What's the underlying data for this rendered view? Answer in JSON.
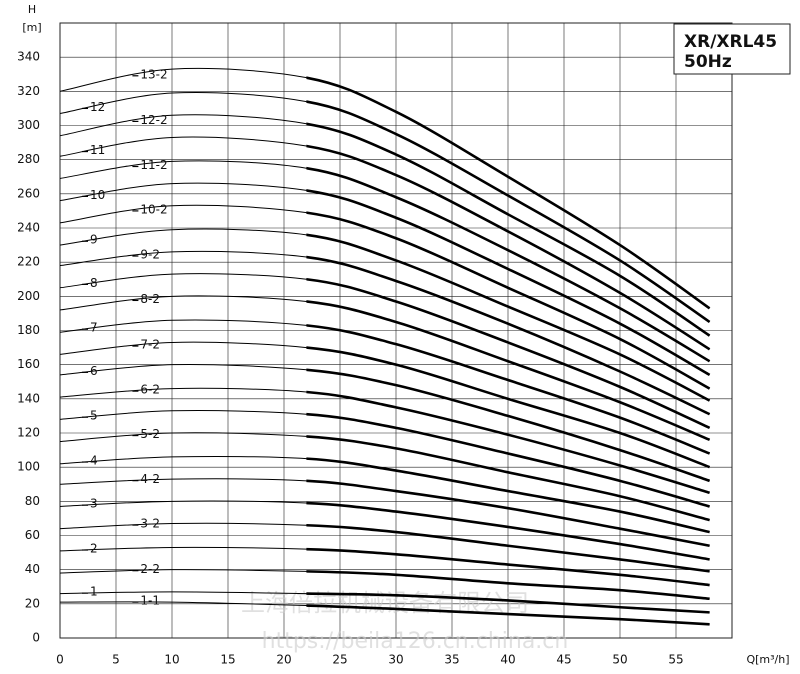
{
  "chart_data": {
    "type": "line",
    "title": "XR/XRL45",
    "subtitle": "50Hz",
    "y_label": "H",
    "y_unit": "[m]",
    "x_label": "Q[m³/h]",
    "watermark": [
      "上海倍拉机械设备有限公司",
      "https://beila126.cn.china.cn"
    ],
    "x": [
      0,
      10,
      22,
      30,
      40,
      50,
      58
    ],
    "xlim": [
      0,
      60
    ],
    "xticks": [
      0,
      5,
      10,
      15,
      20,
      25,
      30,
      35,
      40,
      45,
      50,
      55
    ],
    "ylim": [
      0,
      360
    ],
    "yticks": [
      0,
      20,
      40,
      60,
      80,
      100,
      120,
      140,
      160,
      180,
      200,
      220,
      240,
      260,
      280,
      300,
      320,
      340
    ],
    "grid": true,
    "color": "#000000",
    "series": [
      {
        "name": "1-1",
        "values": [
          21,
          21,
          19,
          17,
          14,
          11,
          8
        ]
      },
      {
        "name": "1",
        "values": [
          26,
          27,
          26,
          25,
          22,
          18,
          15
        ]
      },
      {
        "name": "2-2",
        "values": [
          38,
          40,
          39,
          37,
          32,
          28,
          23
        ]
      },
      {
        "name": "2",
        "values": [
          51,
          53,
          52,
          49,
          43,
          37,
          31
        ]
      },
      {
        "name": "3-2",
        "values": [
          64,
          67,
          66,
          62,
          54,
          46,
          39
        ]
      },
      {
        "name": "3",
        "values": [
          77,
          80,
          79,
          74,
          65,
          55,
          46
        ]
      },
      {
        "name": "4-2",
        "values": [
          90,
          93,
          92,
          86,
          76,
          64,
          54
        ]
      },
      {
        "name": "4",
        "values": [
          102,
          106,
          105,
          98,
          86,
          74,
          62
        ]
      },
      {
        "name": "5-2",
        "values": [
          115,
          120,
          118,
          111,
          97,
          83,
          69
        ]
      },
      {
        "name": "5",
        "values": [
          128,
          133,
          131,
          123,
          108,
          92,
          77
        ]
      },
      {
        "name": "6-2",
        "values": [
          141,
          146,
          144,
          135,
          119,
          101,
          85
        ]
      },
      {
        "name": "6",
        "values": [
          154,
          160,
          157,
          148,
          130,
          110,
          92
        ]
      },
      {
        "name": "7-2",
        "values": [
          166,
          173,
          170,
          160,
          140,
          120,
          100
        ]
      },
      {
        "name": "7",
        "values": [
          179,
          186,
          183,
          172,
          151,
          129,
          108
        ]
      },
      {
        "name": "8-2",
        "values": [
          192,
          200,
          197,
          185,
          162,
          138,
          116
        ]
      },
      {
        "name": "8",
        "values": [
          205,
          213,
          210,
          197,
          173,
          147,
          123
        ]
      },
      {
        "name": "9-2",
        "values": [
          218,
          226,
          223,
          209,
          184,
          156,
          131
        ]
      },
      {
        "name": "9",
        "values": [
          230,
          239,
          236,
          221,
          194,
          166,
          139
        ]
      },
      {
        "name": "10-2",
        "values": [
          243,
          253,
          249,
          234,
          205,
          175,
          146
        ]
      },
      {
        "name": "10",
        "values": [
          256,
          266,
          262,
          246,
          216,
          184,
          154
        ]
      },
      {
        "name": "11-2",
        "values": [
          269,
          279,
          275,
          258,
          227,
          193,
          162
        ]
      },
      {
        "name": "11",
        "values": [
          282,
          293,
          288,
          271,
          238,
          202,
          169
        ]
      },
      {
        "name": "12-2",
        "values": [
          294,
          306,
          301,
          283,
          248,
          212,
          177
        ]
      },
      {
        "name": "12",
        "values": [
          307,
          319,
          314,
          295,
          259,
          221,
          185
        ]
      },
      {
        "name": "13-2",
        "values": [
          320,
          333,
          328,
          308,
          270,
          230,
          193
        ]
      }
    ]
  }
}
